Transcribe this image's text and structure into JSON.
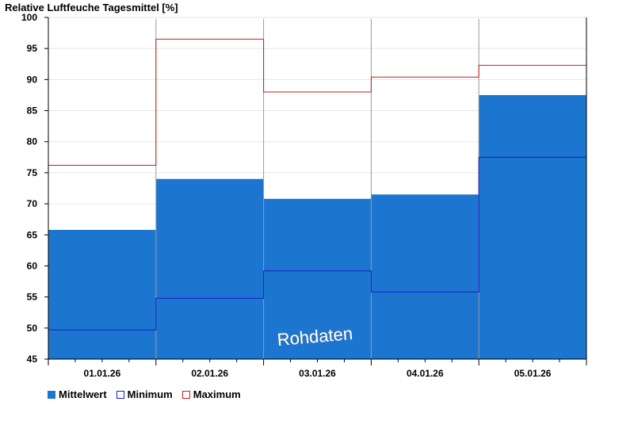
{
  "chart_data": {
    "type": "bar",
    "title": "Relative Luftfeuche Tagesmittel [%]",
    "categories": [
      "01.01.26",
      "02.01.26",
      "03.01.26",
      "04.01.26",
      "05.01.26"
    ],
    "ylim": [
      45,
      100
    ],
    "yticks": [
      45,
      50,
      55,
      60,
      65,
      70,
      75,
      80,
      85,
      90,
      95,
      100
    ],
    "grid": true,
    "legend_position": "bottom-left",
    "watermark": "Rohdaten",
    "series": [
      {
        "name": "Mittelwert",
        "color": "#1c76d0",
        "style": "filled-step",
        "values": [
          65.8,
          74.0,
          70.8,
          71.5,
          87.5
        ]
      },
      {
        "name": "Minimum",
        "color": "#1a1acc",
        "style": "step-line",
        "values": [
          49.7,
          54.8,
          59.2,
          55.8,
          77.5
        ]
      },
      {
        "name": "Maximum",
        "color": "#c81e1e",
        "style": "step-line",
        "values": [
          76.2,
          96.5,
          88.0,
          90.4,
          92.3
        ]
      }
    ]
  }
}
